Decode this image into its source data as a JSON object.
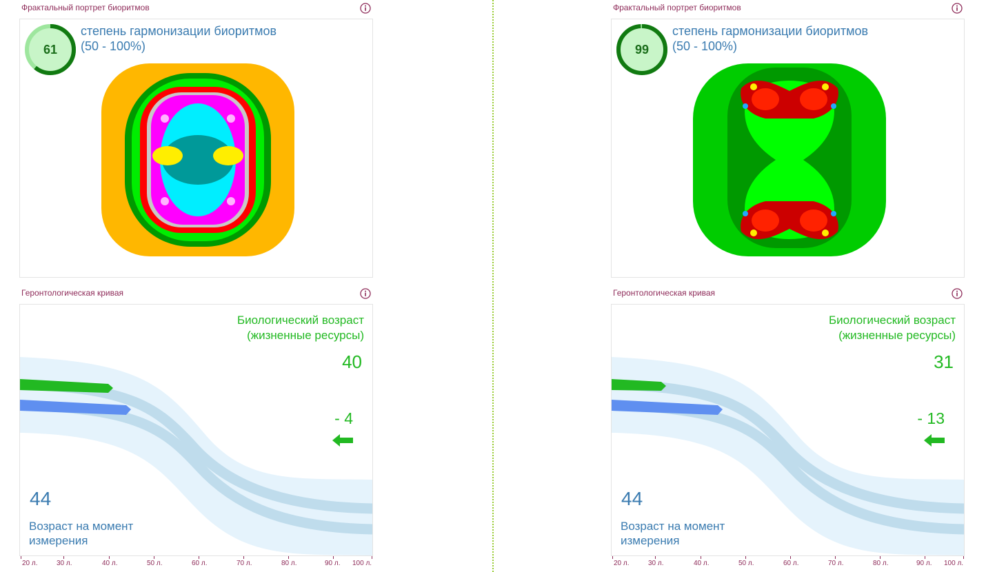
{
  "colors": {
    "section_title": "#8e2b59",
    "harmony_text": "#3a7bb0",
    "bio_green": "#22b922",
    "real_blue": "#5f8ff0",
    "band_light": "#e5f3fc",
    "band_mid": "#bfdcec"
  },
  "panels": [
    {
      "fractal_title": "Фрактальный портрет биоритмов",
      "info_icon": "info-circle-icon",
      "harmony": {
        "value": "61",
        "fraction": 0.61,
        "label_line1": "степень гармонизации биоритмов",
        "label_line2": "(50 - 100%)"
      },
      "fractal_palette": [
        "#ffb700",
        "#009900",
        "#00ee00",
        "#ff0000",
        "#ff00ff",
        "#00eeff",
        "#009999",
        "#ffee00"
      ],
      "curve_title": "Геронтологическая кривая",
      "bio_age_title_line1": "Биологический возраст",
      "bio_age_title_line2": "(жизненные ресурсы)",
      "bio_age": "40",
      "delta": "- 4",
      "arrow_icon": "arrow-left-icon",
      "real_age": "44",
      "real_age_label_line1": "Возраст на момент",
      "real_age_label_line2": "измерения"
    },
    {
      "fractal_title": "Фрактальный портрет биоритмов",
      "info_icon": "info-circle-icon",
      "harmony": {
        "value": "99",
        "fraction": 0.99,
        "label_line1": "степень гармонизации биоритмов",
        "label_line2": "(50 - 100%)"
      },
      "fractal_palette": [
        "#00cc00",
        "#009900",
        "#00ff00",
        "#ff0000",
        "#cc0000",
        "#ffee00",
        "#22aaff"
      ],
      "curve_title": "Геронтологическая кривая",
      "bio_age_title_line1": "Биологический возраст",
      "bio_age_title_line2": "(жизненные ресурсы)",
      "bio_age": "31",
      "delta": "- 13",
      "arrow_icon": "arrow-left-icon",
      "real_age": "44",
      "real_age_label_line1": "Возраст на момент",
      "real_age_label_line2": "измерения"
    }
  ],
  "age_axis": {
    "unit": "л.",
    "ticks": [
      "20 л.",
      "30 л.",
      "40 л.",
      "50 л.",
      "60 л.",
      "70 л.",
      "80 л.",
      "90 л.",
      "100 л."
    ]
  }
}
